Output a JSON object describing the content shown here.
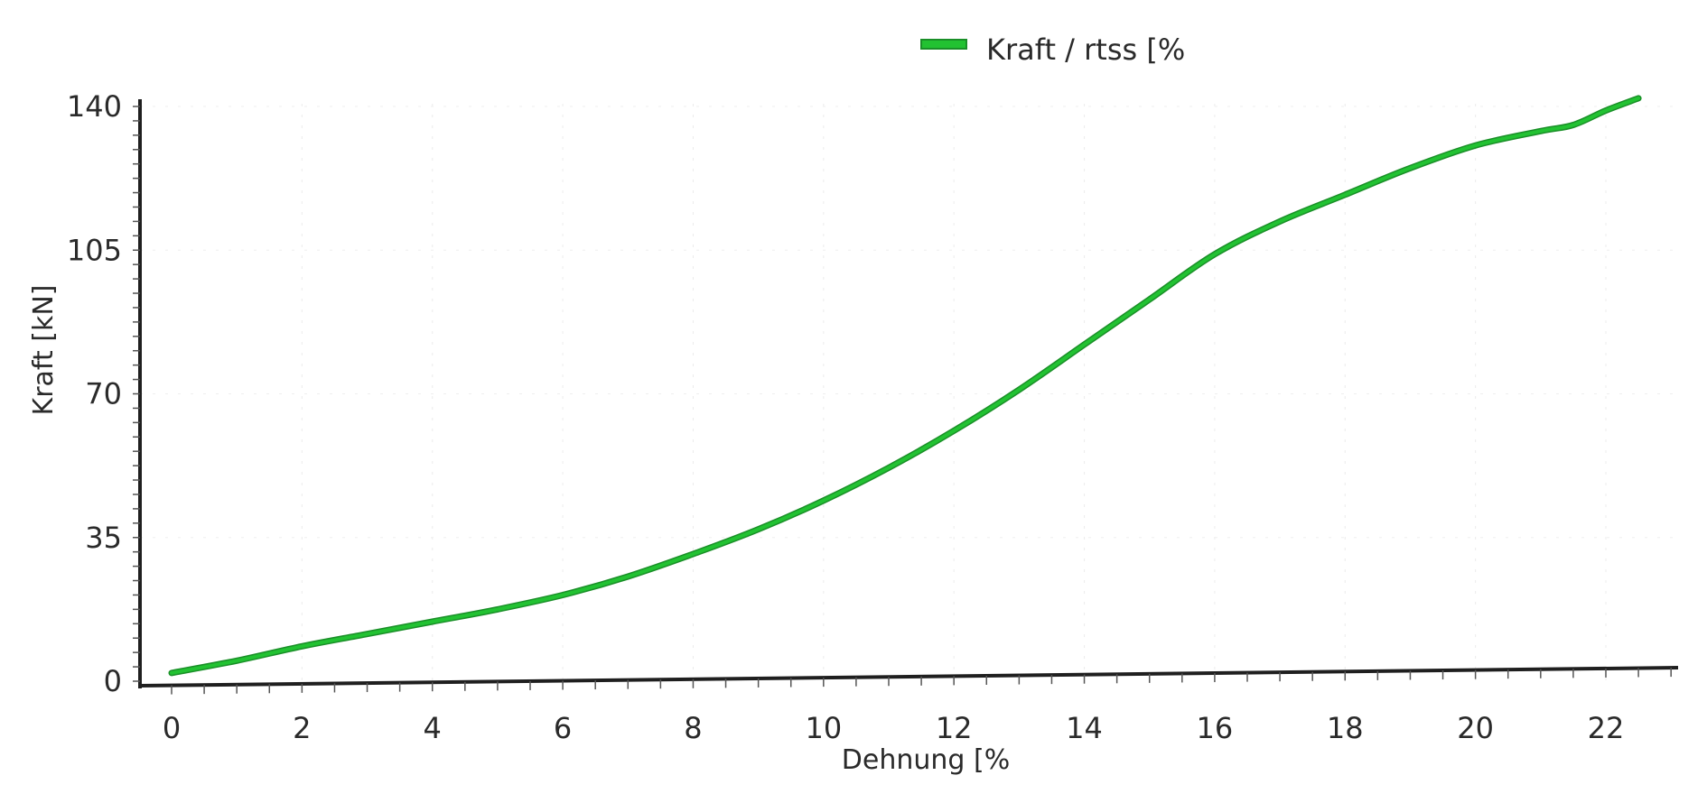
{
  "chart_data": {
    "type": "line",
    "xlabel": "Dehnung [%",
    "ylabel": "Kraft [kN]",
    "xlim": [
      0,
      23
    ],
    "ylim": [
      0,
      140
    ],
    "x_ticks": [
      0,
      2,
      4,
      6,
      8,
      10,
      12,
      14,
      16,
      18,
      20,
      22
    ],
    "y_ticks": [
      0,
      35,
      70,
      105,
      140
    ],
    "grid": false,
    "legend_position": "top",
    "series": [
      {
        "name": "Kraft / rtss [%",
        "color": "#22c232",
        "x": [
          0,
          1,
          2,
          3,
          4,
          5,
          6,
          7,
          8,
          9,
          10,
          11,
          12,
          13,
          14,
          15,
          16,
          17,
          18,
          19,
          20,
          21,
          21.5,
          22,
          22.5
        ],
        "y": [
          2,
          5,
          8.5,
          11.5,
          14.5,
          17.5,
          21,
          25.5,
          31,
          37,
          44,
          52,
          61,
          71,
          82,
          93,
          104,
          112,
          118.5,
          125,
          130.5,
          134,
          135.5,
          139,
          142
        ]
      }
    ]
  }
}
